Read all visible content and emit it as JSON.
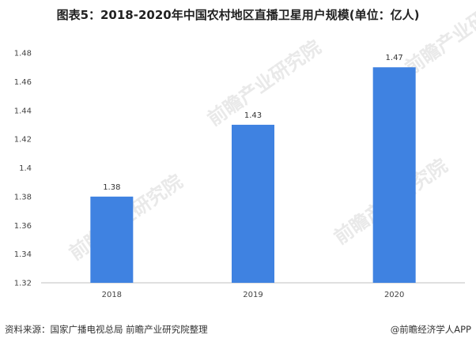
{
  "title": "图表5：2018-2020年中国农村地区直播卫星用户规模(单位：亿人)",
  "chart_data": {
    "type": "bar",
    "categories": [
      "2018",
      "2019",
      "2020"
    ],
    "values": [
      1.38,
      1.43,
      1.47
    ],
    "value_labels": [
      "1.38",
      "1.43",
      "1.47"
    ],
    "yticks": [
      "1.32",
      "1.34",
      "1.36",
      "1.38",
      "1.4",
      "1.42",
      "1.44",
      "1.46",
      "1.48"
    ],
    "ylim": [
      1.32,
      1.48
    ],
    "bar_color": "#3f82e1",
    "grid": false,
    "legend": "none"
  },
  "watermark": "前瞻产业研究院",
  "footer": {
    "source": "资料来源：国家广播电视总局 前瞻产业研究院整理",
    "credit": "@前瞻经济学人APP"
  }
}
